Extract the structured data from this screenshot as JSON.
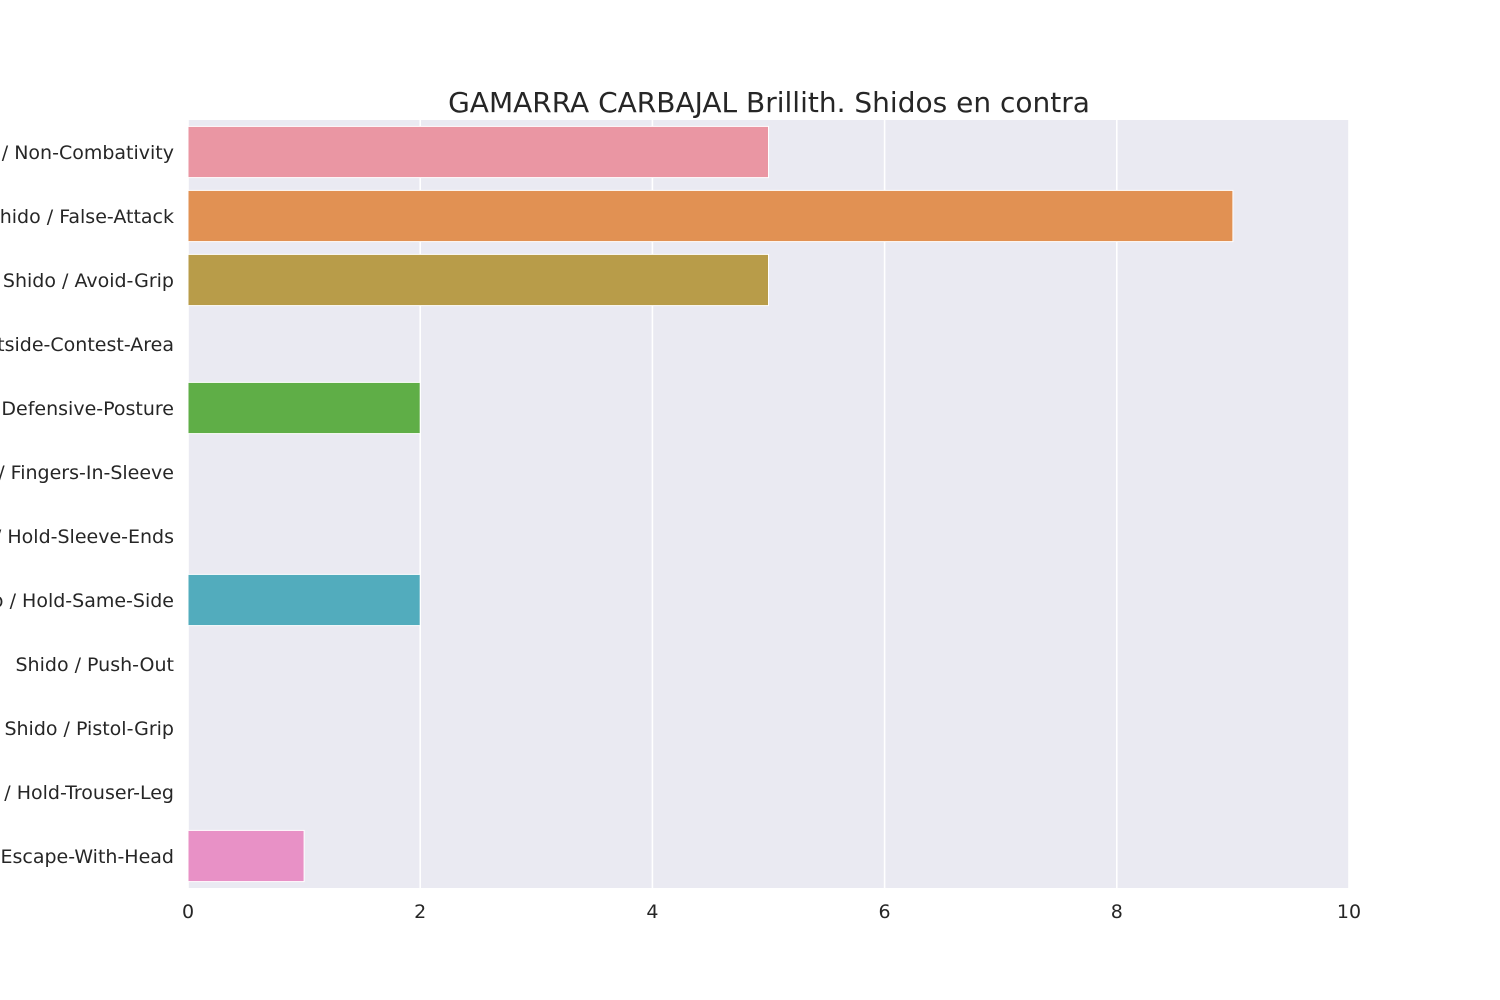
{
  "chart_data": {
    "type": "bar",
    "orientation": "horizontal",
    "title": "GAMARRA CARBAJAL Brillith. Shidos en contra",
    "xlabel": "",
    "ylabel": "",
    "xlim": [
      0,
      10
    ],
    "xticks": [
      "0",
      "2",
      "4",
      "6",
      "8",
      "10"
    ],
    "grid": true,
    "categories": [
      "Shido / Non-Combativity",
      "Shido / False-Attack",
      "Shido / Avoid-Grip",
      "Shido / Outside-Contest-Area",
      "Shido / Defensive-Posture",
      "Shido / Fingers-In-Sleeve",
      "Shido / Hold-Sleeve-Ends",
      "Shido / Hold-Same-Side",
      "Shido / Push-Out",
      "Shido / Pistol-Grip",
      "Shido / Hold-Trouser-Leg",
      "Shido / Escape-With-Head"
    ],
    "values": [
      5,
      9,
      5,
      0,
      2,
      0,
      0,
      2,
      0,
      0,
      0,
      1
    ],
    "colors": [
      "#ea96a3",
      "#e19153",
      "#b89c49",
      "#86a746",
      "#5fae47",
      "#52ae8c",
      "#55aaa2",
      "#52acbd",
      "#5ca6e0",
      "#a3a0e3",
      "#e18ee0",
      "#e891c6"
    ],
    "background": "#eaeaf2",
    "gridline_color": "#ffffff"
  }
}
